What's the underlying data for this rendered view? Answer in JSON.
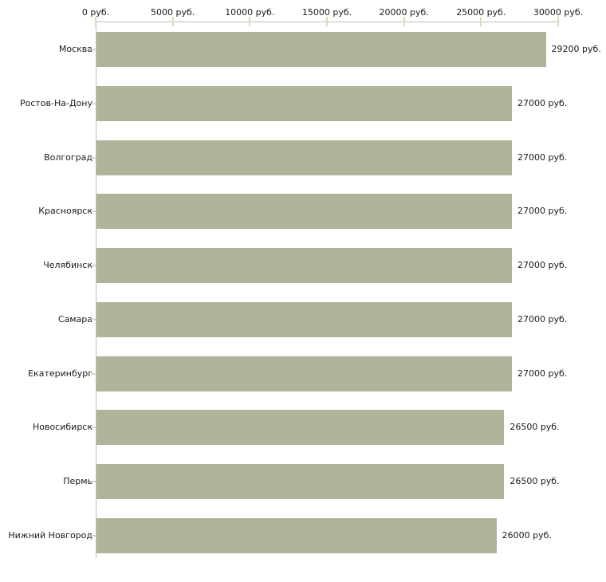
{
  "chart_data": {
    "type": "bar",
    "orientation": "horizontal",
    "title": "",
    "unit": "руб.",
    "categories": [
      "Москва",
      "Ростов-На-Дону",
      "Волгоград",
      "Красноярск",
      "Челябинск",
      "Самара",
      "Екатеринбург",
      "Новосибирск",
      "Пермь",
      "Нижний Новгород"
    ],
    "values": [
      29200,
      27000,
      27000,
      27000,
      27000,
      27000,
      27000,
      26500,
      26500,
      26000
    ],
    "value_labels": [
      "29200 руб.",
      "27000 руб.",
      "27000 руб.",
      "27000 руб.",
      "27000 руб.",
      "27000 руб.",
      "27000 руб.",
      "26500 руб.",
      "26500 руб.",
      "26000 руб."
    ],
    "x_axis": {
      "position": "top",
      "min": 0,
      "max": 30000,
      "ticks": [
        0,
        5000,
        10000,
        15000,
        20000,
        25000,
        30000
      ],
      "tick_labels": [
        "0 руб.",
        "5000 руб.",
        "10000 руб.",
        "15000 руб.",
        "20000 руб.",
        "25000 руб.",
        "30000 руб."
      ]
    },
    "legend": null,
    "grid": false,
    "colors": {
      "bar": "#b0b499",
      "axis_line": "#bcbcbc",
      "tick": "#d9dcba",
      "text": "#1a1a1a",
      "background": "#ffffff"
    }
  }
}
